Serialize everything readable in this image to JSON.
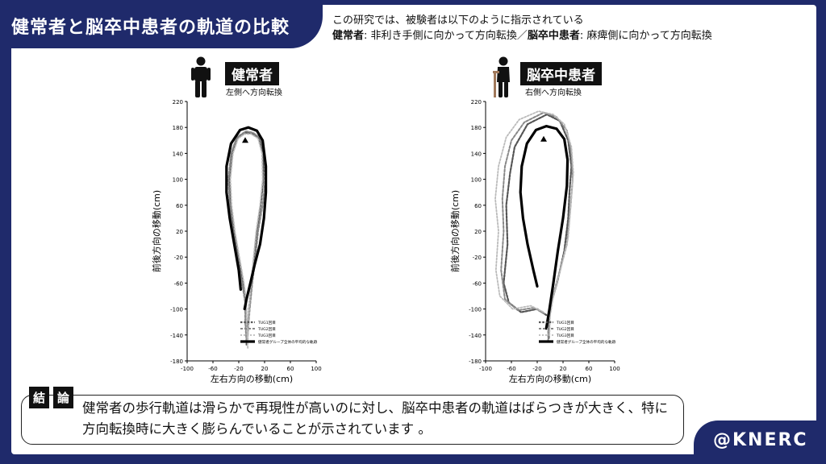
{
  "header": {
    "title": "健常者と脳卒中患者の軌道の比較"
  },
  "instructions": {
    "line1": "この研究では、被験者は以下のように指示されている",
    "healthy_bold": "健常者",
    "healthy_text": ": 非利き手側に向かって方向転換／",
    "stroke_bold": "脳卒中患者",
    "stroke_text": ": 麻痺側に向かって方向転換"
  },
  "panels": [
    {
      "label": "健常者",
      "sublabel": "左側へ方向転換"
    },
    {
      "label": "脳卒中患者",
      "sublabel": "右側へ方向転換"
    }
  ],
  "conclusion": {
    "tag1": "結",
    "tag2": "論",
    "text": "健常者の歩行軌道は滑らかで再現性が高いのに対し、脳卒中患者の軌道はばらつきが大きく、特に方向転換時に大きく膨らんでいることが示されています 。"
  },
  "brand": "@KNERC",
  "colors": {
    "navy": "#1f2a6b"
  },
  "chart_data": [
    {
      "type": "line",
      "xlabel": "左右方向の移動(cm)",
      "ylabel": "前後方向の移動(cm)",
      "xlim": [
        -100,
        100
      ],
      "ylim": [
        -180,
        220
      ],
      "xticks": [
        -100,
        -60,
        -20,
        20,
        60,
        100
      ],
      "yticks": [
        -180,
        -140,
        -100,
        -60,
        -20,
        20,
        60,
        100,
        140,
        180,
        220
      ],
      "legend_position": "bottom-right",
      "marker": {
        "symbol": "triangle",
        "x": -10,
        "y": 160
      },
      "series": [
        {
          "name": "TUG1回目",
          "style": "dotted-dark",
          "points": [
            [
              -7,
              -150
            ],
            [
              -9,
              -120
            ],
            [
              -9,
              -90
            ],
            [
              -13,
              -60
            ],
            [
              -20,
              -20
            ],
            [
              -27,
              20
            ],
            [
              -33,
              60
            ],
            [
              -34,
              100
            ],
            [
              -30,
              140
            ],
            [
              -22,
              164
            ],
            [
              -10,
              172
            ],
            [
              0,
              171
            ],
            [
              11,
              164
            ],
            [
              18,
              140
            ],
            [
              18,
              100
            ],
            [
              14,
              60
            ],
            [
              8,
              20
            ],
            [
              4,
              -20
            ],
            [
              0,
              -60
            ],
            [
              -4,
              -100
            ],
            [
              -6,
              -130
            ],
            [
              -8,
              -155
            ]
          ]
        },
        {
          "name": "TUG2回目",
          "style": "dotted-mid",
          "points": [
            [
              -8,
              -150
            ],
            [
              -10,
              -120
            ],
            [
              -10,
              -90
            ],
            [
              -15,
              -60
            ],
            [
              -22,
              -20
            ],
            [
              -29,
              20
            ],
            [
              -34,
              60
            ],
            [
              -36,
              100
            ],
            [
              -32,
              140
            ],
            [
              -23,
              165
            ],
            [
              -9,
              174
            ],
            [
              2,
              172
            ],
            [
              13,
              164
            ],
            [
              20,
              140
            ],
            [
              21,
              100
            ],
            [
              17,
              60
            ],
            [
              10,
              20
            ],
            [
              6,
              -20
            ],
            [
              1,
              -60
            ],
            [
              -3,
              -100
            ],
            [
              -6,
              -140
            ]
          ]
        },
        {
          "name": "TUG3回目",
          "style": "dotted-light",
          "points": [
            [
              -6,
              -160
            ],
            [
              -8,
              -120
            ],
            [
              -8,
              -90
            ],
            [
              -12,
              -60
            ],
            [
              -19,
              -20
            ],
            [
              -26,
              20
            ],
            [
              -31,
              60
            ],
            [
              -33,
              100
            ],
            [
              -29,
              140
            ],
            [
              -21,
              163
            ],
            [
              -11,
              170
            ],
            [
              -1,
              170
            ],
            [
              10,
              163
            ],
            [
              16,
              140
            ],
            [
              17,
              100
            ],
            [
              13,
              60
            ],
            [
              7,
              20
            ],
            [
              3,
              -20
            ],
            [
              -1,
              -60
            ],
            [
              -4,
              -100
            ],
            [
              -6,
              -150
            ]
          ]
        },
        {
          "name": "健常者グループ全体の平均的な軌跡",
          "style": "solid",
          "points": [
            [
              -17,
              -70
            ],
            [
              -20,
              -40
            ],
            [
              -27,
              0
            ],
            [
              -34,
              40
            ],
            [
              -39,
              80
            ],
            [
              -39,
              120
            ],
            [
              -32,
              155
            ],
            [
              -18,
              176
            ],
            [
              -5,
              180
            ],
            [
              8,
              175
            ],
            [
              17,
              160
            ],
            [
              22,
              120
            ],
            [
              22,
              80
            ],
            [
              19,
              40
            ],
            [
              13,
              0
            ],
            [
              5,
              -30
            ],
            [
              -2,
              -60
            ],
            [
              -8,
              -85
            ],
            [
              -11,
              -100
            ]
          ]
        }
      ]
    },
    {
      "type": "line",
      "xlabel": "左右方向の移動(cm)",
      "ylabel": "前後方向の移動(cm)",
      "xlim": [
        -100,
        100
      ],
      "ylim": [
        -180,
        220
      ],
      "xticks": [
        -100,
        -60,
        -20,
        20,
        60,
        100
      ],
      "yticks": [
        -180,
        -140,
        -100,
        -60,
        -20,
        20,
        60,
        100,
        140,
        180,
        220
      ],
      "legend_position": "bottom-right",
      "marker": {
        "symbol": "triangle",
        "x": -10,
        "y": 162
      },
      "series": [
        {
          "name": "TUG1回目",
          "style": "dotted-dark",
          "points": [
            [
              -2,
              -145
            ],
            [
              -2,
              -120
            ],
            [
              2,
              -90
            ],
            [
              12,
              -55
            ],
            [
              22,
              -10
            ],
            [
              28,
              40
            ],
            [
              30,
              80
            ],
            [
              33,
              120
            ],
            [
              28,
              160
            ],
            [
              15,
              190
            ],
            [
              -5,
              200
            ],
            [
              -35,
              185
            ],
            [
              -55,
              150
            ],
            [
              -62,
              110
            ],
            [
              -68,
              60
            ],
            [
              -66,
              0
            ],
            [
              -72,
              -60
            ],
            [
              -64,
              -90
            ],
            [
              -45,
              -105
            ],
            [
              -20,
              -100
            ],
            [
              -5,
              -110
            ]
          ]
        },
        {
          "name": "TUG2回目",
          "style": "dotted-mid",
          "points": [
            [
              -3,
              -150
            ],
            [
              -3,
              -120
            ],
            [
              3,
              -85
            ],
            [
              14,
              -45
            ],
            [
              26,
              0
            ],
            [
              31,
              50
            ],
            [
              35,
              100
            ],
            [
              33,
              140
            ],
            [
              26,
              175
            ],
            [
              10,
              196
            ],
            [
              -10,
              203
            ],
            [
              -40,
              188
            ],
            [
              -60,
              160
            ],
            [
              -70,
              120
            ],
            [
              -74,
              70
            ],
            [
              -72,
              20
            ],
            [
              -76,
              -40
            ],
            [
              -70,
              -85
            ],
            [
              -50,
              -102
            ],
            [
              -25,
              -98
            ],
            [
              -8,
              -108
            ]
          ]
        },
        {
          "name": "TUG3回目",
          "style": "dotted-light",
          "points": [
            [
              -1,
              -140
            ],
            [
              0,
              -110
            ],
            [
              5,
              -80
            ],
            [
              16,
              -40
            ],
            [
              28,
              10
            ],
            [
              32,
              60
            ],
            [
              36,
              110
            ],
            [
              33,
              150
            ],
            [
              22,
              185
            ],
            [
              5,
              200
            ],
            [
              -18,
              205
            ],
            [
              -48,
              192
            ],
            [
              -68,
              165
            ],
            [
              -80,
              120
            ],
            [
              -85,
              70
            ],
            [
              -80,
              20
            ],
            [
              -84,
              -40
            ],
            [
              -78,
              -80
            ],
            [
              -58,
              -100
            ],
            [
              -30,
              -95
            ],
            [
              -10,
              -105
            ]
          ]
        },
        {
          "name": "健常者グループ全体の平均的な軌跡",
          "style": "solid",
          "points": [
            [
              -20,
              -65
            ],
            [
              -26,
              -40
            ],
            [
              -35,
              0
            ],
            [
              -42,
              40
            ],
            [
              -46,
              80
            ],
            [
              -44,
              120
            ],
            [
              -36,
              155
            ],
            [
              -22,
              176
            ],
            [
              -6,
              182
            ],
            [
              10,
              178
            ],
            [
              22,
              162
            ],
            [
              27,
              130
            ],
            [
              26,
              90
            ],
            [
              20,
              40
            ],
            [
              12,
              -10
            ],
            [
              5,
              -60
            ],
            [
              -1,
              -100
            ],
            [
              -6,
              -130
            ]
          ]
        }
      ]
    }
  ]
}
